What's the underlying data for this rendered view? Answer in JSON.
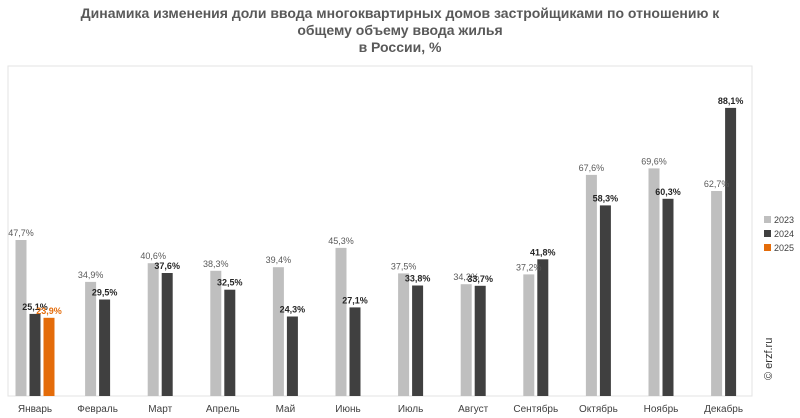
{
  "title_lines": [
    "Динамика изменения доли ввода многоквартирных домов застройщиками по отношению к",
    "общему объему ввода жилья",
    "в России, %"
  ],
  "watermark": "© erzf.ru",
  "colors": {
    "2023": "#bfbfbf",
    "2024": "#404040",
    "2025": "#e46c0a"
  },
  "chart_data": {
    "type": "bar",
    "title": "Динамика изменения доли ввода многоквартирных домов застройщиками по отношению к общему объему ввода жилья в России, %",
    "categories": [
      "Январь",
      "Февраль",
      "Март",
      "Апрель",
      "Май",
      "Июнь",
      "Июль",
      "Август",
      "Сентябрь",
      "Октябрь",
      "Ноябрь",
      "Декабрь"
    ],
    "series": [
      {
        "name": "2023",
        "values": [
          47.7,
          34.9,
          40.6,
          38.3,
          39.4,
          45.3,
          37.5,
          34.2,
          37.2,
          67.6,
          69.6,
          62.7
        ],
        "labels": [
          "47,7%",
          "34,9%",
          "40,6%",
          "38,3%",
          "39,4%",
          "45,3%",
          "37,5%",
          "34,2%",
          "37,2%",
          "67,6%",
          "69,6%",
          "62,7%"
        ]
      },
      {
        "name": "2024",
        "values": [
          25.1,
          29.5,
          37.6,
          32.5,
          24.3,
          27.1,
          33.8,
          33.7,
          41.8,
          58.3,
          60.3,
          88.1
        ],
        "labels": [
          "25,1%",
          "29,5%",
          "37,6%",
          "32,5%",
          "24,3%",
          "27,1%",
          "33,8%",
          "33,7%",
          "41,8%",
          "58,3%",
          "60,3%",
          "88,1%"
        ]
      },
      {
        "name": "2025",
        "values": [
          23.9,
          null,
          null,
          null,
          null,
          null,
          null,
          null,
          null,
          null,
          null,
          null
        ],
        "labels": [
          "23,9%",
          "",
          "",
          "",
          "",
          "",
          "",
          "",
          "",
          "",
          "",
          ""
        ]
      }
    ],
    "ylim": [
      0,
      90
    ],
    "legend_position": "right",
    "grid": false
  }
}
